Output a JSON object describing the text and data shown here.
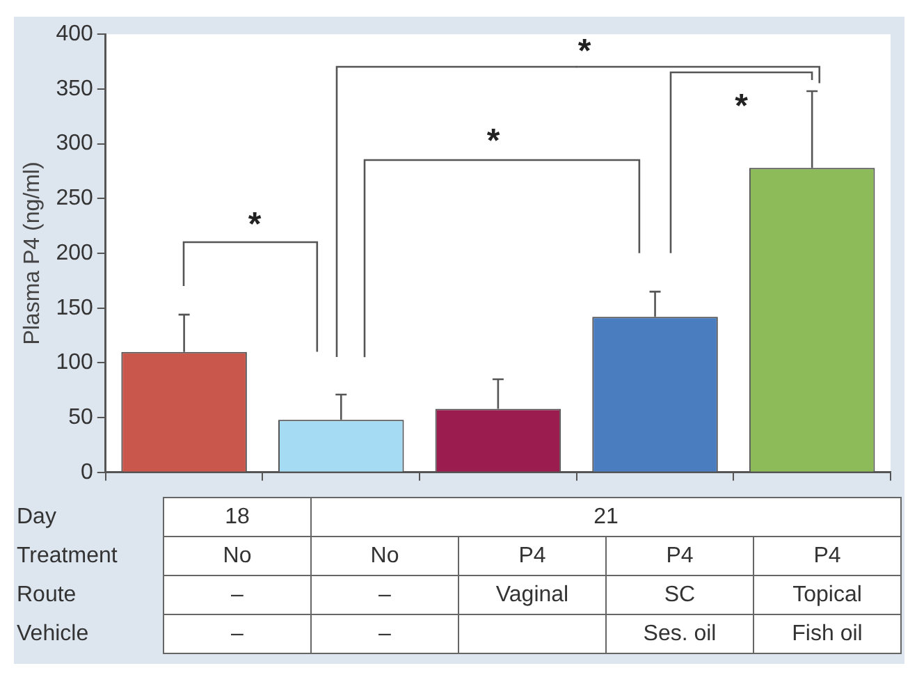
{
  "chart_data": {
    "type": "bar",
    "ylabel": "Plasma P4 (ng/ml)",
    "categories": [
      null,
      null,
      null,
      null,
      null
    ],
    "values": [
      110,
      48,
      58,
      142,
      278
    ],
    "colors": [
      "#c9574b",
      "#a6dcf3",
      "#9b1c4f",
      "#4a7cc0",
      "#8dbb5a"
    ],
    "errors": [
      [
        110,
        144
      ],
      [
        48,
        71
      ],
      [
        58,
        85
      ],
      [
        142,
        165
      ],
      [
        278,
        348
      ]
    ],
    "ylim": [
      0,
      400
    ],
    "yticks": [
      0,
      50,
      100,
      150,
      200,
      250,
      300,
      350,
      400
    ],
    "grid": false,
    "legend": false,
    "annotations": [
      "*",
      "*",
      "*",
      "*",
      "Day",
      "18",
      "21",
      "Treatment",
      "No",
      "No",
      "P4",
      "P4",
      "P4",
      "Route",
      "–",
      "–",
      "Vaginal",
      "SC",
      "Topical",
      "Vehicle",
      "–",
      "–",
      "Ses. oil",
      "Fish oil"
    ]
  }
}
